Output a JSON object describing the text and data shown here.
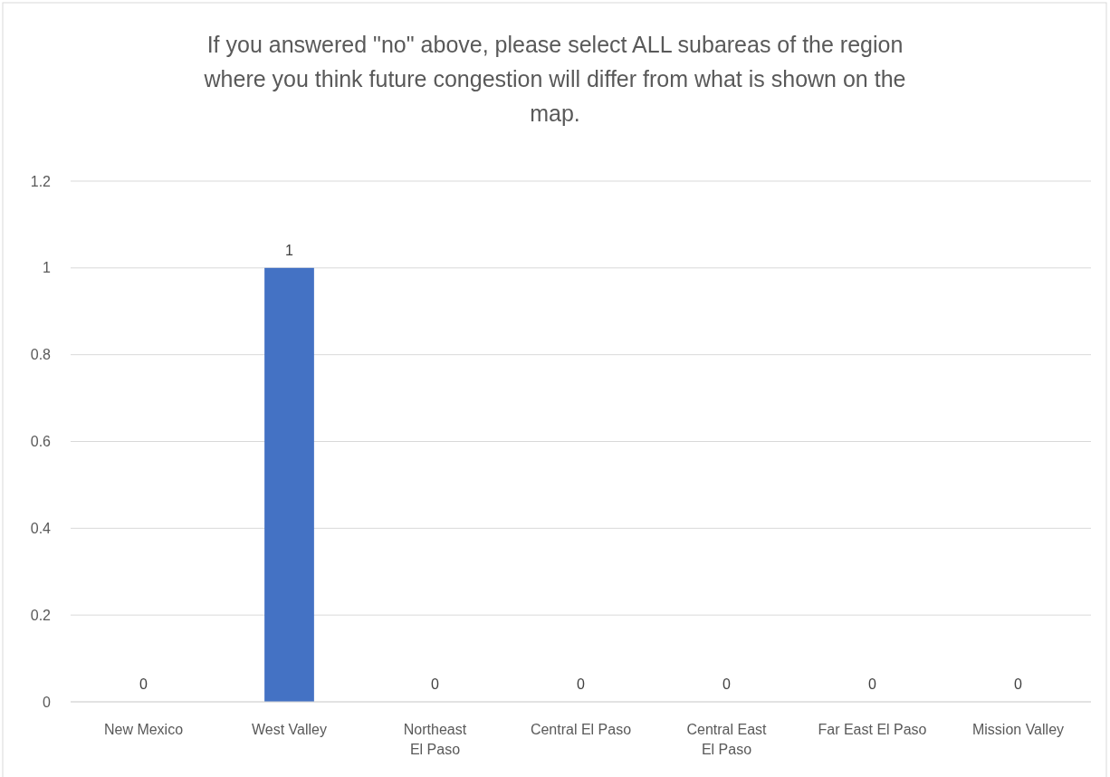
{
  "chart_data": {
    "type": "bar",
    "title": "If you answered \"no\" above, please select ALL subareas of the region where you think future congestion will differ from what is shown on the map.",
    "categories": [
      "New Mexico",
      "West Valley",
      "Northeast El Paso",
      "Central El Paso",
      "Central East El Paso",
      "Far East El Paso",
      "Mission Valley"
    ],
    "values": [
      0,
      1,
      0,
      0,
      0,
      0,
      0
    ],
    "color": "#4472c4",
    "ylim": [
      0,
      1.2
    ],
    "yticks": [
      0,
      0.2,
      0.4,
      0.6,
      0.8,
      1,
      1.2
    ],
    "grid": "y",
    "data_labels": true
  }
}
